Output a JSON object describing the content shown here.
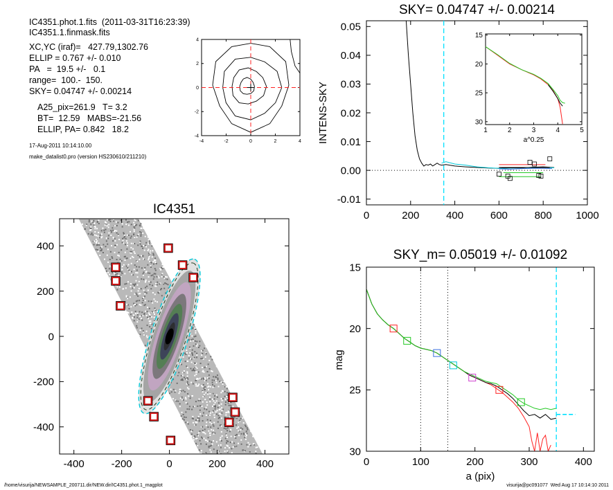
{
  "header": {
    "line1": "IC4351.phot.1.fits  (2011-03-31T16:23:39)",
    "line2": "IC4351.1.finmask.fits",
    "xcyc": "XC,YC (iraf)=   427.79,1302.76",
    "ellip": "ELLIP = 0.767 +/- 0.010",
    "pa": "PA   =  19.5 +/-   0.1",
    "range": "range=  100.-  150.",
    "sky": "SKY= 0.04747 +/- 0.00214",
    "a25": "A25_pix=261.9   T= 3.2",
    "bt": "BT=  12.59   MABS=-21.56",
    "ellip_pa": "ELLIP, PA= 0.842   18.2",
    "date": "17-Aug-2011 10:14:10.00",
    "program": "make_datalist0.pro (version HS230610/211210)"
  },
  "footer": {
    "left": "/home/visurija/NEWSAMPLE_200711.dir/NEW.dir/IC4351.phot.1_magplot",
    "right": "visurija@pc091077  Wed Aug 17 10:14:10 2011"
  },
  "colors": {
    "sky_marker": "#00e0ff",
    "black": "#000000",
    "red": "#ff2020",
    "green": "#22c922",
    "blue": "#3a6fe0",
    "cyan": "#00c8d8",
    "stamp_red": "#d11818"
  },
  "chart_data": [
    {
      "id": "center_contours",
      "type": "contour",
      "xlim": [
        -4,
        4
      ],
      "ylim": [
        -4,
        4
      ],
      "xticks": [
        "-4",
        "-2",
        "0",
        "2",
        "4"
      ],
      "yticks": [
        "-4",
        "-2",
        "0",
        "2",
        "4"
      ],
      "contours": [
        {
          "rx": 3.1,
          "ry": 3.7,
          "cx": 0.0,
          "cy": 0.2
        },
        {
          "rx": 2.4,
          "ry": 2.6,
          "cx": 0.0,
          "cy": 0.0
        },
        {
          "rx": 1.4,
          "ry": 1.5,
          "cx": -0.2,
          "cy": 0.1
        },
        {
          "rx": 0.6,
          "ry": 0.7,
          "cx": -0.3,
          "cy": 0.1
        }
      ],
      "center_x": 0.0,
      "center_y": 0.0
    },
    {
      "id": "sky_profile",
      "type": "line",
      "title": "SKY= 0.04747 +/- 0.00214",
      "ylabel": "INTENS-SKY",
      "xlim": [
        0,
        1000
      ],
      "ylim": [
        -0.012,
        0.052
      ],
      "xticks": [
        "0",
        "200",
        "400",
        "600",
        "800",
        "1000"
      ],
      "yticks": [
        "-0.01",
        "0.00",
        "0.01",
        "0.02",
        "0.03",
        "0.04",
        "0.05"
      ],
      "ytick_values": [
        -0.01,
        0.0,
        0.01,
        0.02,
        0.03,
        0.04,
        0.05
      ],
      "xtick_values": [
        0,
        200,
        400,
        600,
        800,
        1000
      ],
      "sky_radius": 350,
      "series": [
        {
          "color": "black",
          "x": [
            180,
            190,
            200,
            210,
            220,
            230,
            240,
            250,
            260,
            270,
            280,
            290,
            300,
            310,
            320,
            330,
            340,
            360,
            400,
            450,
            500,
            550,
            600,
            650,
            700,
            750,
            800,
            850
          ],
          "y": [
            0.052,
            0.04,
            0.03,
            0.02,
            0.012,
            0.007,
            0.004,
            0.0025,
            0.0015,
            0.002,
            0.0018,
            0.0022,
            0.0015,
            0.002,
            0.0025,
            0.002,
            0.0018,
            0.002,
            0.0015,
            0.0012,
            0.001,
            0.0008,
            0.0007,
            0.0009,
            0.0008,
            0.0011,
            0.0012,
            0.001
          ]
        },
        {
          "color": "cyan",
          "x": [
            340,
            360,
            400,
            450,
            500,
            550,
            600,
            650,
            700,
            750,
            800,
            850
          ],
          "y": [
            0.0025,
            0.003,
            0.0022,
            0.0018,
            0.0012,
            0.0009,
            0.0007,
            0.0005,
            0.0006,
            0.0008,
            0.001,
            0.0009
          ]
        },
        {
          "color": "blue",
          "x": [
            600,
            650,
            700,
            750,
            800,
            840
          ],
          "y": [
            0.0005,
            0.0004,
            0.0006,
            0.0007,
            0.0007,
            0.0006
          ]
        }
      ],
      "segments": [
        {
          "color": "red",
          "x": [
            600,
            810
          ],
          "y": [
            0.002,
            0.002
          ]
        },
        {
          "color": "black",
          "x": [
            600,
            830
          ],
          "y": [
            0.001,
            0.001
          ]
        },
        {
          "color": "green",
          "x": [
            600,
            790
          ],
          "y": [
            -0.0022,
            -0.0022
          ]
        },
        {
          "color": "green",
          "x": [
            620,
            800
          ],
          "y": [
            -0.0008,
            -0.0008
          ]
        }
      ],
      "squares": [
        {
          "x": 600,
          "y": -0.0013
        },
        {
          "x": 640,
          "y": -0.002
        },
        {
          "x": 650,
          "y": -0.0028
        },
        {
          "x": 740,
          "y": 0.0028
        },
        {
          "x": 760,
          "y": 0.0022
        },
        {
          "x": 780,
          "y": -0.0018
        },
        {
          "x": 790,
          "y": -0.002
        },
        {
          "x": 830,
          "y": 0.004
        }
      ],
      "inset": {
        "xlabel": "a^0.25",
        "xlim": [
          1,
          5
        ],
        "ylim": [
          30.5,
          14.8
        ],
        "xticks": [
          "1",
          "2",
          "3",
          "4",
          "5"
        ],
        "yticks": [
          "15",
          "20",
          "25",
          "30"
        ],
        "xtick_values": [
          1,
          2,
          3,
          4,
          5
        ],
        "ytick_values": [
          15,
          20,
          25,
          30
        ],
        "series": [
          {
            "color": "red",
            "x": [
              1.0,
              1.5,
              2.0,
              2.5,
              3.0,
              3.3,
              3.6,
              3.8,
              4.0,
              4.1,
              4.15,
              4.2
            ],
            "y": [
              17.0,
              18.5,
              20.0,
              21.0,
              21.9,
              22.6,
              23.6,
              24.6,
              26.0,
              27.5,
              29.0,
              30.4
            ]
          },
          {
            "color": "black",
            "x": [
              3.6,
              3.8,
              4.0,
              4.1,
              4.2
            ],
            "y": [
              23.6,
              24.7,
              26.0,
              26.8,
              27.3
            ]
          },
          {
            "color": "green",
            "x": [
              1.0,
              1.5,
              2.0,
              2.5,
              3.0,
              3.3,
              3.6,
              3.8,
              4.0,
              4.1,
              4.2,
              4.3
            ],
            "y": [
              17.0,
              18.4,
              19.9,
              21.0,
              21.8,
              22.5,
              23.4,
              24.4,
              25.5,
              26.3,
              26.7,
              26.8
            ]
          }
        ]
      }
    },
    {
      "id": "galaxy_image",
      "type": "image",
      "title": "IC4351",
      "xlim": [
        -460,
        500
      ],
      "ylim": [
        -520,
        520
      ],
      "xticks": [
        "-400",
        "-200",
        "0",
        "200",
        "400"
      ],
      "yticks": [
        "-400",
        "-200",
        "0",
        "200",
        "400"
      ],
      "xtick_values": [
        -400,
        -200,
        0,
        200,
        400
      ],
      "ytick_values": [
        -400,
        -200,
        0,
        200,
        400
      ],
      "ellipse": {
        "a": 340,
        "b": 78,
        "pa_deg": 18
      },
      "masks": [
        {
          "x": -5,
          "y": 390
        },
        {
          "x": 55,
          "y": 315
        },
        {
          "x": -225,
          "y": 305
        },
        {
          "x": 100,
          "y": 260
        },
        {
          "x": -225,
          "y": 245
        },
        {
          "x": -205,
          "y": 135
        },
        {
          "x": -90,
          "y": -285
        },
        {
          "x": 265,
          "y": -270
        },
        {
          "x": 275,
          "y": -335
        },
        {
          "x": -65,
          "y": -355
        },
        {
          "x": 250,
          "y": -380
        },
        {
          "x": 5,
          "y": -460
        }
      ]
    },
    {
      "id": "mag_profile",
      "type": "line",
      "title": "SKY_m=  0.05019 +/- 0.01092",
      "xlabel": "a (pix)",
      "ylabel": "mag",
      "xlim": [
        0,
        420
      ],
      "ylim": [
        30.0,
        15.0
      ],
      "xticks": [
        "0",
        "100",
        "200",
        "300",
        "400"
      ],
      "yticks": [
        "15",
        "20",
        "25",
        "30"
      ],
      "xtick_values": [
        0,
        100,
        200,
        300,
        400
      ],
      "ytick_values": [
        15,
        20,
        25,
        30
      ],
      "range_lines": [
        100,
        150
      ],
      "sky_radius": 350,
      "sky_mag": 27.0,
      "series": [
        {
          "color": "red",
          "x": [
            0,
            10,
            20,
            30,
            40,
            50,
            60,
            70,
            80,
            90,
            100,
            110,
            120,
            130,
            140,
            150,
            160,
            170,
            180,
            190,
            200,
            210,
            220,
            230,
            240,
            250,
            260,
            270,
            280,
            290,
            300,
            305,
            310,
            315,
            320,
            325,
            330,
            335,
            340
          ],
          "y": [
            16.8,
            18.0,
            18.8,
            19.3,
            19.7,
            20.0,
            20.4,
            20.8,
            21.1,
            21.4,
            21.6,
            21.7,
            21.8,
            22.0,
            22.3,
            22.6,
            22.9,
            23.2,
            23.5,
            23.8,
            24.0,
            24.2,
            24.4,
            24.6,
            24.9,
            25.2,
            25.6,
            26.0,
            26.5,
            27.2,
            28.0,
            29.2,
            30.0,
            28.5,
            30.0,
            29.0,
            28.7,
            30.0,
            29.5
          ]
        },
        {
          "color": "black",
          "x": [
            0,
            10,
            20,
            30,
            40,
            50,
            60,
            70,
            80,
            90,
            100,
            110,
            120,
            130,
            140,
            150,
            160,
            170,
            180,
            190,
            200,
            210,
            220,
            230,
            240,
            250,
            260,
            270,
            280,
            290,
            300,
            310,
            320,
            330,
            340,
            350
          ],
          "y": [
            16.8,
            18.0,
            18.8,
            19.3,
            19.7,
            20.0,
            20.4,
            20.8,
            21.1,
            21.4,
            21.6,
            21.7,
            21.8,
            22.0,
            22.3,
            22.6,
            22.9,
            23.2,
            23.5,
            23.8,
            24.0,
            24.2,
            24.4,
            24.5,
            24.7,
            25.0,
            25.3,
            25.7,
            26.2,
            26.7,
            27.1,
            27.0,
            27.3,
            27.0,
            27.4,
            27.3
          ]
        },
        {
          "color": "green",
          "x": [
            0,
            10,
            20,
            30,
            40,
            50,
            60,
            70,
            80,
            90,
            100,
            110,
            120,
            130,
            140,
            150,
            160,
            170,
            180,
            190,
            200,
            210,
            220,
            230,
            240,
            250,
            260,
            270,
            280,
            290,
            300,
            310,
            320,
            330,
            340,
            350
          ],
          "y": [
            16.8,
            18.0,
            18.8,
            19.3,
            19.7,
            20.0,
            20.4,
            20.8,
            21.1,
            21.4,
            21.6,
            21.7,
            21.8,
            22.0,
            22.3,
            22.6,
            22.9,
            23.2,
            23.5,
            23.7,
            23.9,
            24.1,
            24.3,
            24.4,
            24.5,
            24.8,
            25.1,
            25.4,
            25.8,
            26.1,
            26.3,
            26.5,
            26.6,
            26.5,
            26.6,
            26.5
          ]
        }
      ],
      "markers": [
        {
          "x": 50,
          "y": 20.0,
          "color": "red"
        },
        {
          "x": 75,
          "y": 21.0,
          "color": "green"
        },
        {
          "x": 130,
          "y": 22.0,
          "color": "blue"
        },
        {
          "x": 160,
          "y": 23.0,
          "color": "cyan"
        },
        {
          "x": 195,
          "y": 24.0,
          "color": "magenta"
        },
        {
          "x": 245,
          "y": 25.0,
          "color": "red"
        },
        {
          "x": 285,
          "y": 26.0,
          "color": "green"
        }
      ]
    }
  ]
}
